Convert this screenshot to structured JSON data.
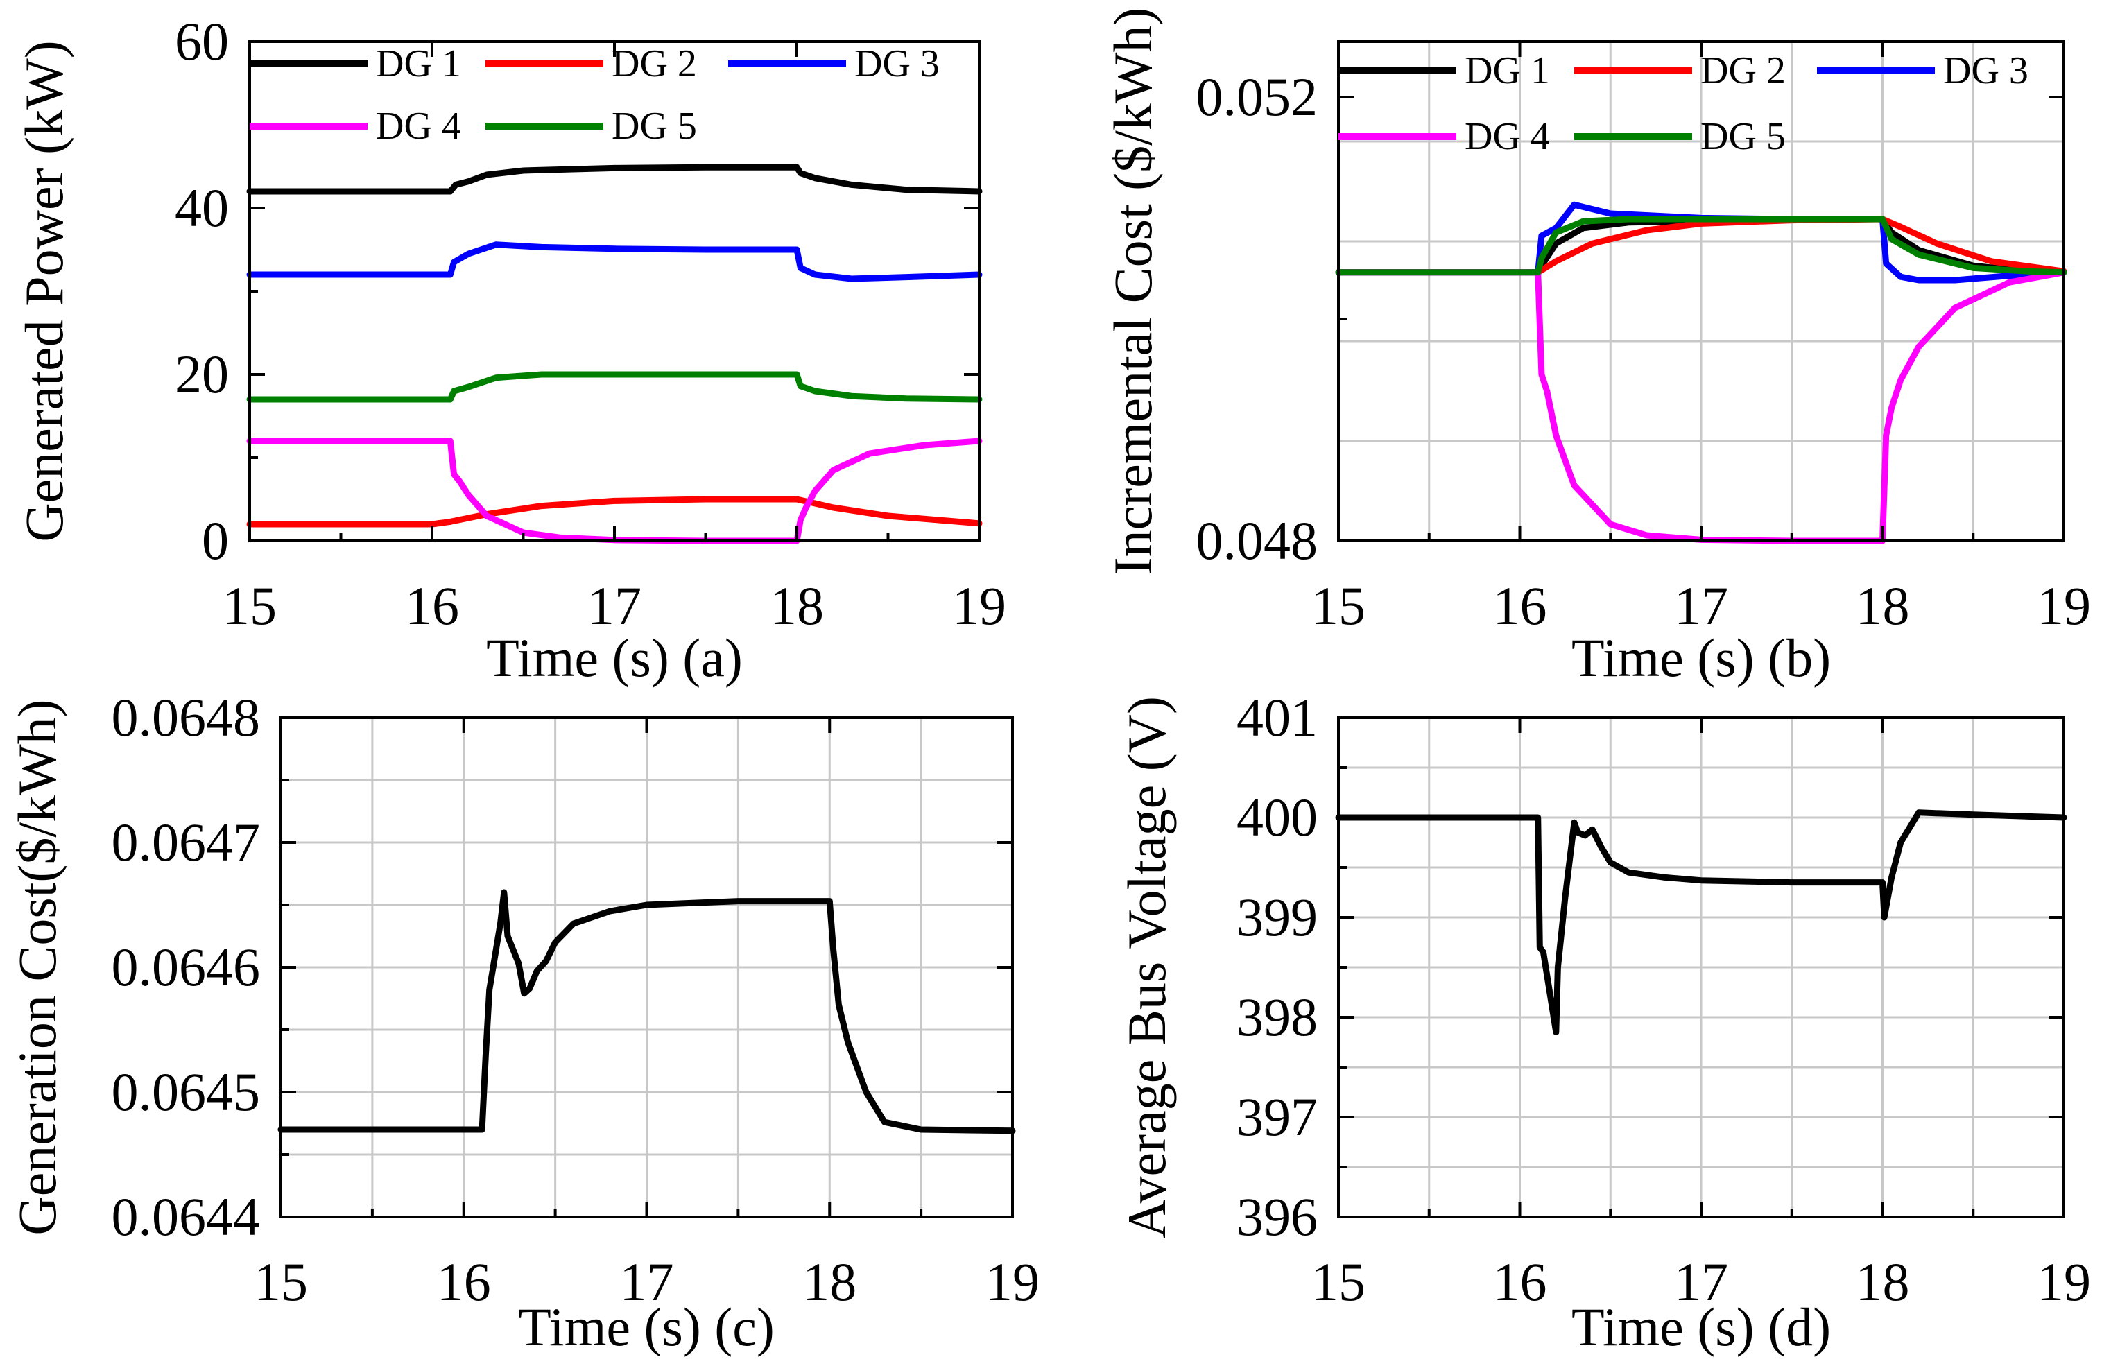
{
  "chart_data": [
    {
      "type": "line",
      "panel_label": "(a)",
      "xlabel": "Time (s)  (a)",
      "ylabel": "Generated Power (kW)",
      "xlim": [
        15,
        19
      ],
      "ylim": [
        0,
        60
      ],
      "xticks": [
        15,
        16,
        17,
        18,
        19
      ],
      "yticks": [
        0,
        20,
        40,
        60
      ],
      "grid": false,
      "legend_position": "top",
      "series": [
        {
          "name": "DG 1",
          "color": "#000000",
          "x": [
            15,
            16.1,
            16.13,
            16.2,
            16.3,
            16.5,
            17,
            17.5,
            18,
            18.02,
            18.1,
            18.3,
            18.6,
            19
          ],
          "y": [
            42,
            42,
            42.8,
            43.2,
            44,
            44.5,
            44.8,
            44.9,
            44.9,
            44.2,
            43.6,
            42.8,
            42.2,
            42
          ]
        },
        {
          "name": "DG 2",
          "color": "#ff0000",
          "x": [
            15,
            16,
            16.1,
            16.3,
            16.6,
            17,
            17.5,
            18,
            18.2,
            18.5,
            19
          ],
          "y": [
            2,
            2,
            2.3,
            3.2,
            4.2,
            4.8,
            5,
            5,
            4,
            3,
            2.1
          ]
        },
        {
          "name": "DG 3",
          "color": "#0000ff",
          "x": [
            15,
            16.1,
            16.12,
            16.2,
            16.35,
            16.6,
            17,
            17.5,
            18,
            18.02,
            18.1,
            18.3,
            18.6,
            19
          ],
          "y": [
            32,
            32,
            33.5,
            34.5,
            35.6,
            35.3,
            35.1,
            35,
            35,
            32.8,
            32,
            31.5,
            31.7,
            32
          ]
        },
        {
          "name": "DG 4",
          "color": "#ff00ff",
          "x": [
            15,
            16.1,
            16.12,
            16.15,
            16.2,
            16.3,
            16.5,
            16.7,
            17,
            17.5,
            18,
            18.02,
            18.05,
            18.1,
            18.2,
            18.4,
            18.7,
            19
          ],
          "y": [
            12,
            12,
            8,
            7.2,
            5.5,
            3,
            1,
            0.4,
            0.1,
            0,
            0,
            2.5,
            4,
            6,
            8.5,
            10.5,
            11.5,
            12
          ]
        },
        {
          "name": "DG 5",
          "color": "#008000",
          "x": [
            15,
            16.1,
            16.12,
            16.2,
            16.35,
            16.6,
            17,
            18,
            18.02,
            18.1,
            18.3,
            18.6,
            19
          ],
          "y": [
            17,
            17,
            18,
            18.5,
            19.6,
            20,
            20,
            20,
            18.6,
            18,
            17.4,
            17.1,
            17
          ]
        }
      ]
    },
    {
      "type": "line",
      "panel_label": "(b)",
      "xlabel": "Time (s) (b)",
      "ylabel": "Incremental Cost ($/kWh)",
      "xlim": [
        15,
        19
      ],
      "ylim": [
        0.048,
        0.0525
      ],
      "xticks": [
        15,
        16,
        17,
        18,
        19
      ],
      "yticks": [
        0.048,
        0.052
      ],
      "yticks_labels": [
        "0.048",
        "0.052"
      ],
      "grid": true,
      "legend_position": "top",
      "series": [
        {
          "name": "DG 1",
          "color": "#000000",
          "x": [
            15,
            16.1,
            16.12,
            16.2,
            16.35,
            16.6,
            17,
            17.5,
            18,
            18.05,
            18.2,
            18.5,
            18.8,
            19
          ],
          "y": [
            0.05042,
            0.05042,
            0.05048,
            0.05068,
            0.05082,
            0.05087,
            0.05088,
            0.0509,
            0.0509,
            0.05078,
            0.05062,
            0.05048,
            0.05043,
            0.05042
          ]
        },
        {
          "name": "DG 2",
          "color": "#ff0000",
          "x": [
            15,
            16.1,
            16.2,
            16.4,
            16.7,
            17,
            17.5,
            18,
            18.1,
            18.3,
            18.6,
            19
          ],
          "y": [
            0.05042,
            0.05042,
            0.05052,
            0.05068,
            0.0508,
            0.05086,
            0.05089,
            0.0509,
            0.05083,
            0.05068,
            0.05052,
            0.05043
          ]
        },
        {
          "name": "DG 3",
          "color": "#0000ff",
          "x": [
            15,
            16.1,
            16.12,
            16.2,
            16.3,
            16.5,
            17,
            17.5,
            18,
            18.02,
            18.1,
            18.2,
            18.4,
            18.7,
            19
          ],
          "y": [
            0.05042,
            0.05042,
            0.05075,
            0.05082,
            0.05103,
            0.05095,
            0.05091,
            0.0509,
            0.0509,
            0.0505,
            0.05038,
            0.05035,
            0.05035,
            0.05039,
            0.05042
          ]
        },
        {
          "name": "DG 4",
          "color": "#ff00ff",
          "x": [
            15,
            16.1,
            16.12,
            16.15,
            16.2,
            16.3,
            16.5,
            16.7,
            17,
            17.5,
            18,
            18.02,
            18.05,
            18.1,
            18.2,
            18.4,
            18.7,
            19
          ],
          "y": [
            0.05042,
            0.05042,
            0.0495,
            0.04935,
            0.04895,
            0.0485,
            0.04815,
            0.04805,
            0.04801,
            0.048,
            0.048,
            0.04895,
            0.0492,
            0.04945,
            0.04975,
            0.0501,
            0.05033,
            0.05042
          ]
        },
        {
          "name": "DG 5",
          "color": "#008000",
          "x": [
            15,
            16.1,
            16.12,
            16.2,
            16.35,
            16.6,
            17,
            17.5,
            18,
            18.05,
            18.2,
            18.5,
            18.8,
            19
          ],
          "y": [
            0.05042,
            0.05042,
            0.05055,
            0.05078,
            0.05088,
            0.0509,
            0.0509,
            0.0509,
            0.0509,
            0.05072,
            0.05058,
            0.05046,
            0.05043,
            0.05042
          ]
        }
      ]
    },
    {
      "type": "line",
      "panel_label": "(c)",
      "xlabel": "Time (s) (c)",
      "ylabel": "Generation Cost($/kWh)",
      "xlim": [
        15,
        19
      ],
      "ylim": [
        0.0644,
        0.0648
      ],
      "xticks": [
        15,
        16,
        17,
        18,
        19
      ],
      "yticks": [
        0.0644,
        0.0645,
        0.0646,
        0.0647,
        0.0648
      ],
      "yticks_labels": [
        "0.0644",
        "0.0645",
        "0.0646",
        "0.0647",
        "0.0648"
      ],
      "grid": true,
      "series": [
        {
          "name": "Generation Cost",
          "color": "#000000",
          "x": [
            15,
            16.1,
            16.12,
            16.14,
            16.2,
            16.22,
            16.24,
            16.3,
            16.33,
            16.36,
            16.4,
            16.45,
            16.5,
            16.6,
            16.8,
            17,
            17.5,
            18,
            18.02,
            18.05,
            18.1,
            18.2,
            18.3,
            18.5,
            19
          ],
          "y": [
            0.06447,
            0.06447,
            0.06453,
            0.064582,
            0.064635,
            0.06466,
            0.064625,
            0.064603,
            0.064579,
            0.064583,
            0.064597,
            0.064605,
            0.06462,
            0.064635,
            0.064645,
            0.06465,
            0.064653,
            0.064653,
            0.064615,
            0.06457,
            0.06454,
            0.0645,
            0.064476,
            0.06447,
            0.064469
          ]
        }
      ]
    },
    {
      "type": "line",
      "panel_label": "(d)",
      "xlabel": "Time (s) (d)",
      "ylabel": "Average Bus Voltage (V)",
      "xlim": [
        15,
        19
      ],
      "ylim": [
        396,
        401
      ],
      "xticks": [
        15,
        16,
        17,
        18,
        19
      ],
      "yticks": [
        396,
        397,
        398,
        399,
        400,
        401
      ],
      "grid": true,
      "series": [
        {
          "name": "Average Bus Voltage",
          "color": "#000000",
          "x": [
            15,
            16.1,
            16.11,
            16.13,
            16.2,
            16.21,
            16.25,
            16.3,
            16.32,
            16.36,
            16.4,
            16.45,
            16.5,
            16.6,
            16.8,
            17,
            17.5,
            18,
            18.01,
            18.05,
            18.1,
            18.2,
            18.5,
            19
          ],
          "y": [
            400,
            400,
            398.7,
            398.65,
            397.85,
            398.5,
            399.2,
            399.95,
            399.85,
            399.82,
            399.88,
            399.7,
            399.55,
            399.45,
            399.4,
            399.37,
            399.35,
            399.35,
            399.0,
            399.4,
            399.75,
            400.05,
            400.03,
            400
          ]
        }
      ]
    }
  ]
}
